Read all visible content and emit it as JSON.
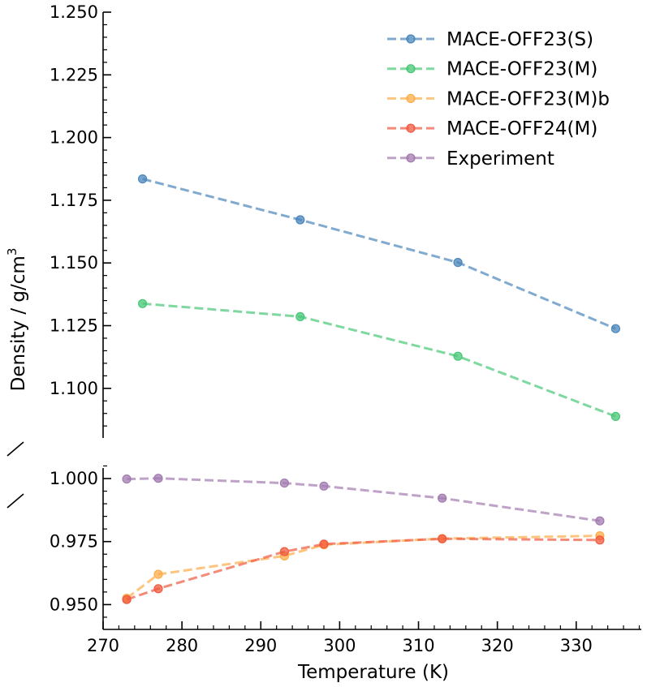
{
  "chart_data": {
    "type": "line",
    "title": "",
    "xlabel": "Temperature (K)",
    "ylabel": "Density / g/cm",
    "ylabel_superscript": "3",
    "xlim": [
      270,
      338
    ],
    "broken_y_axis": true,
    "upper_panel": {
      "ylim": [
        1.08,
        1.25
      ],
      "yticks": [
        "1.100",
        "1.125",
        "1.150",
        "1.175",
        "1.200",
        "1.225",
        "1.250"
      ]
    },
    "lower_panel": {
      "ylim": [
        0.94,
        1.005
      ],
      "yticks": [
        "0.950",
        "0.975",
        "1.000"
      ]
    },
    "xticks": [
      "270",
      "280",
      "290",
      "300",
      "310",
      "320",
      "330"
    ],
    "legend_position": "top-right",
    "series": [
      {
        "name": "MACE-OFF23(S)",
        "color": "#4a86bb",
        "panel": "upper",
        "x": [
          275,
          295,
          315,
          335
        ],
        "y": [
          1.1835,
          1.1672,
          1.1502,
          1.1238
        ]
      },
      {
        "name": "MACE-OFF23(M)",
        "color": "#47c776",
        "panel": "upper",
        "x": [
          275,
          295,
          315,
          335
        ],
        "y": [
          1.1338,
          1.1286,
          1.1128,
          1.0888
        ]
      },
      {
        "name": "MACE-OFF23(M)b",
        "color": "#fdad48",
        "panel": "lower",
        "x": [
          273,
          277,
          293,
          298,
          313,
          333
        ],
        "y": [
          0.9525,
          0.962,
          0.9693,
          0.9737,
          0.9762,
          0.9773
        ]
      },
      {
        "name": "MACE-OFF24(M)",
        "color": "#f0593f",
        "panel": "lower",
        "x": [
          273,
          277,
          293,
          298,
          313,
          333
        ],
        "y": [
          0.952,
          0.9563,
          0.971,
          0.974,
          0.9761,
          0.9756
        ]
      },
      {
        "name": "Experiment",
        "color": "#a27ab0",
        "panel": "lower",
        "x": [
          273,
          277,
          293,
          298,
          313,
          333
        ],
        "y": [
          0.9998,
          1.0001,
          0.9982,
          0.997,
          0.9922,
          0.9832
        ]
      }
    ]
  }
}
